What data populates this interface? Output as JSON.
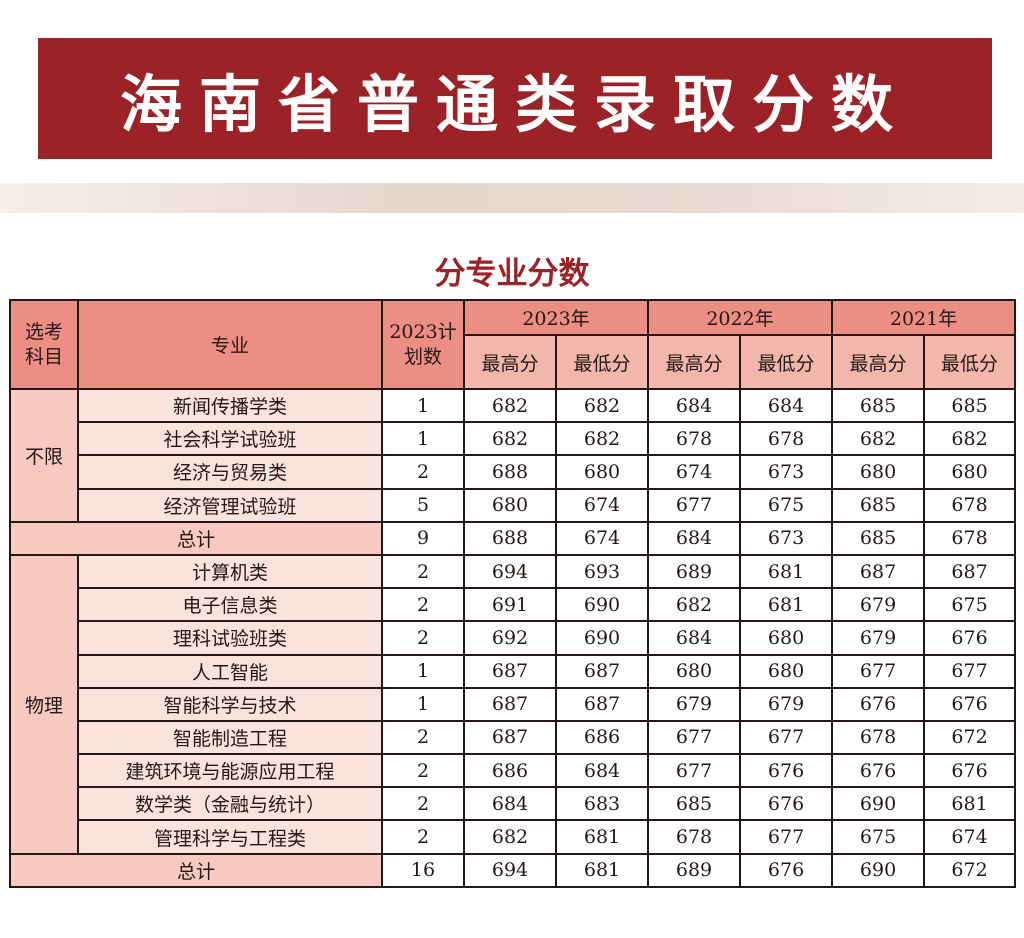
{
  "banner": {
    "title": "海南省普通类录取分数"
  },
  "subtitle": "分专业分数",
  "table": {
    "header": {
      "subject_line1": "选考",
      "subject_line2": "科目",
      "major": "专业",
      "plan_line1": "2023计",
      "plan_line2": "划数",
      "years": [
        "2023年",
        "2022年",
        "2021年"
      ],
      "max": "最高分",
      "min": "最低分"
    },
    "groups": [
      {
        "subject": "不限",
        "rows": [
          {
            "major": "新闻传播学类",
            "plan": "1",
            "s2023_max": "682",
            "s2023_min": "682",
            "s2022_max": "684",
            "s2022_min": "684",
            "s2021_max": "685",
            "s2021_min": "685"
          },
          {
            "major": "社会科学试验班",
            "plan": "1",
            "s2023_max": "682",
            "s2023_min": "682",
            "s2022_max": "678",
            "s2022_min": "678",
            "s2021_max": "682",
            "s2021_min": "682"
          },
          {
            "major": "经济与贸易类",
            "plan": "2",
            "s2023_max": "688",
            "s2023_min": "680",
            "s2022_max": "674",
            "s2022_min": "673",
            "s2021_max": "680",
            "s2021_min": "680"
          },
          {
            "major": "经济管理试验班",
            "plan": "5",
            "s2023_max": "680",
            "s2023_min": "674",
            "s2022_max": "677",
            "s2022_min": "675",
            "s2021_max": "685",
            "s2021_min": "678"
          }
        ],
        "total": {
          "label": "总计",
          "plan": "9",
          "s2023_max": "688",
          "s2023_min": "674",
          "s2022_max": "684",
          "s2022_min": "673",
          "s2021_max": "685",
          "s2021_min": "678"
        }
      },
      {
        "subject": "物理",
        "rows": [
          {
            "major": "计算机类",
            "plan": "2",
            "s2023_max": "694",
            "s2023_min": "693",
            "s2022_max": "689",
            "s2022_min": "681",
            "s2021_max": "687",
            "s2021_min": "687"
          },
          {
            "major": "电子信息类",
            "plan": "2",
            "s2023_max": "691",
            "s2023_min": "690",
            "s2022_max": "682",
            "s2022_min": "681",
            "s2021_max": "679",
            "s2021_min": "675"
          },
          {
            "major": "理科试验班类",
            "plan": "2",
            "s2023_max": "692",
            "s2023_min": "690",
            "s2022_max": "684",
            "s2022_min": "680",
            "s2021_max": "679",
            "s2021_min": "676"
          },
          {
            "major": "人工智能",
            "plan": "1",
            "s2023_max": "687",
            "s2023_min": "687",
            "s2022_max": "680",
            "s2022_min": "680",
            "s2021_max": "677",
            "s2021_min": "677"
          },
          {
            "major": "智能科学与技术",
            "plan": "1",
            "s2023_max": "687",
            "s2023_min": "687",
            "s2022_max": "679",
            "s2022_min": "679",
            "s2021_max": "676",
            "s2021_min": "676"
          },
          {
            "major": "智能制造工程",
            "plan": "2",
            "s2023_max": "687",
            "s2023_min": "686",
            "s2022_max": "677",
            "s2022_min": "677",
            "s2021_max": "678",
            "s2021_min": "672"
          },
          {
            "major": "建筑环境与能源应用工程",
            "plan": "2",
            "s2023_max": "686",
            "s2023_min": "684",
            "s2022_max": "677",
            "s2022_min": "676",
            "s2021_max": "676",
            "s2021_min": "676"
          },
          {
            "major": "数学类（金融与统计）",
            "plan": "2",
            "s2023_max": "684",
            "s2023_min": "683",
            "s2022_max": "685",
            "s2022_min": "676",
            "s2021_max": "690",
            "s2021_min": "681"
          },
          {
            "major": "管理科学与工程类",
            "plan": "2",
            "s2023_max": "682",
            "s2023_min": "681",
            "s2022_max": "678",
            "s2022_min": "677",
            "s2021_max": "675",
            "s2021_min": "674"
          }
        ],
        "total": {
          "label": "总计",
          "plan": "16",
          "s2023_max": "694",
          "s2023_min": "681",
          "s2022_max": "689",
          "s2022_min": "676",
          "s2021_max": "690",
          "s2021_min": "672"
        }
      }
    ]
  }
}
